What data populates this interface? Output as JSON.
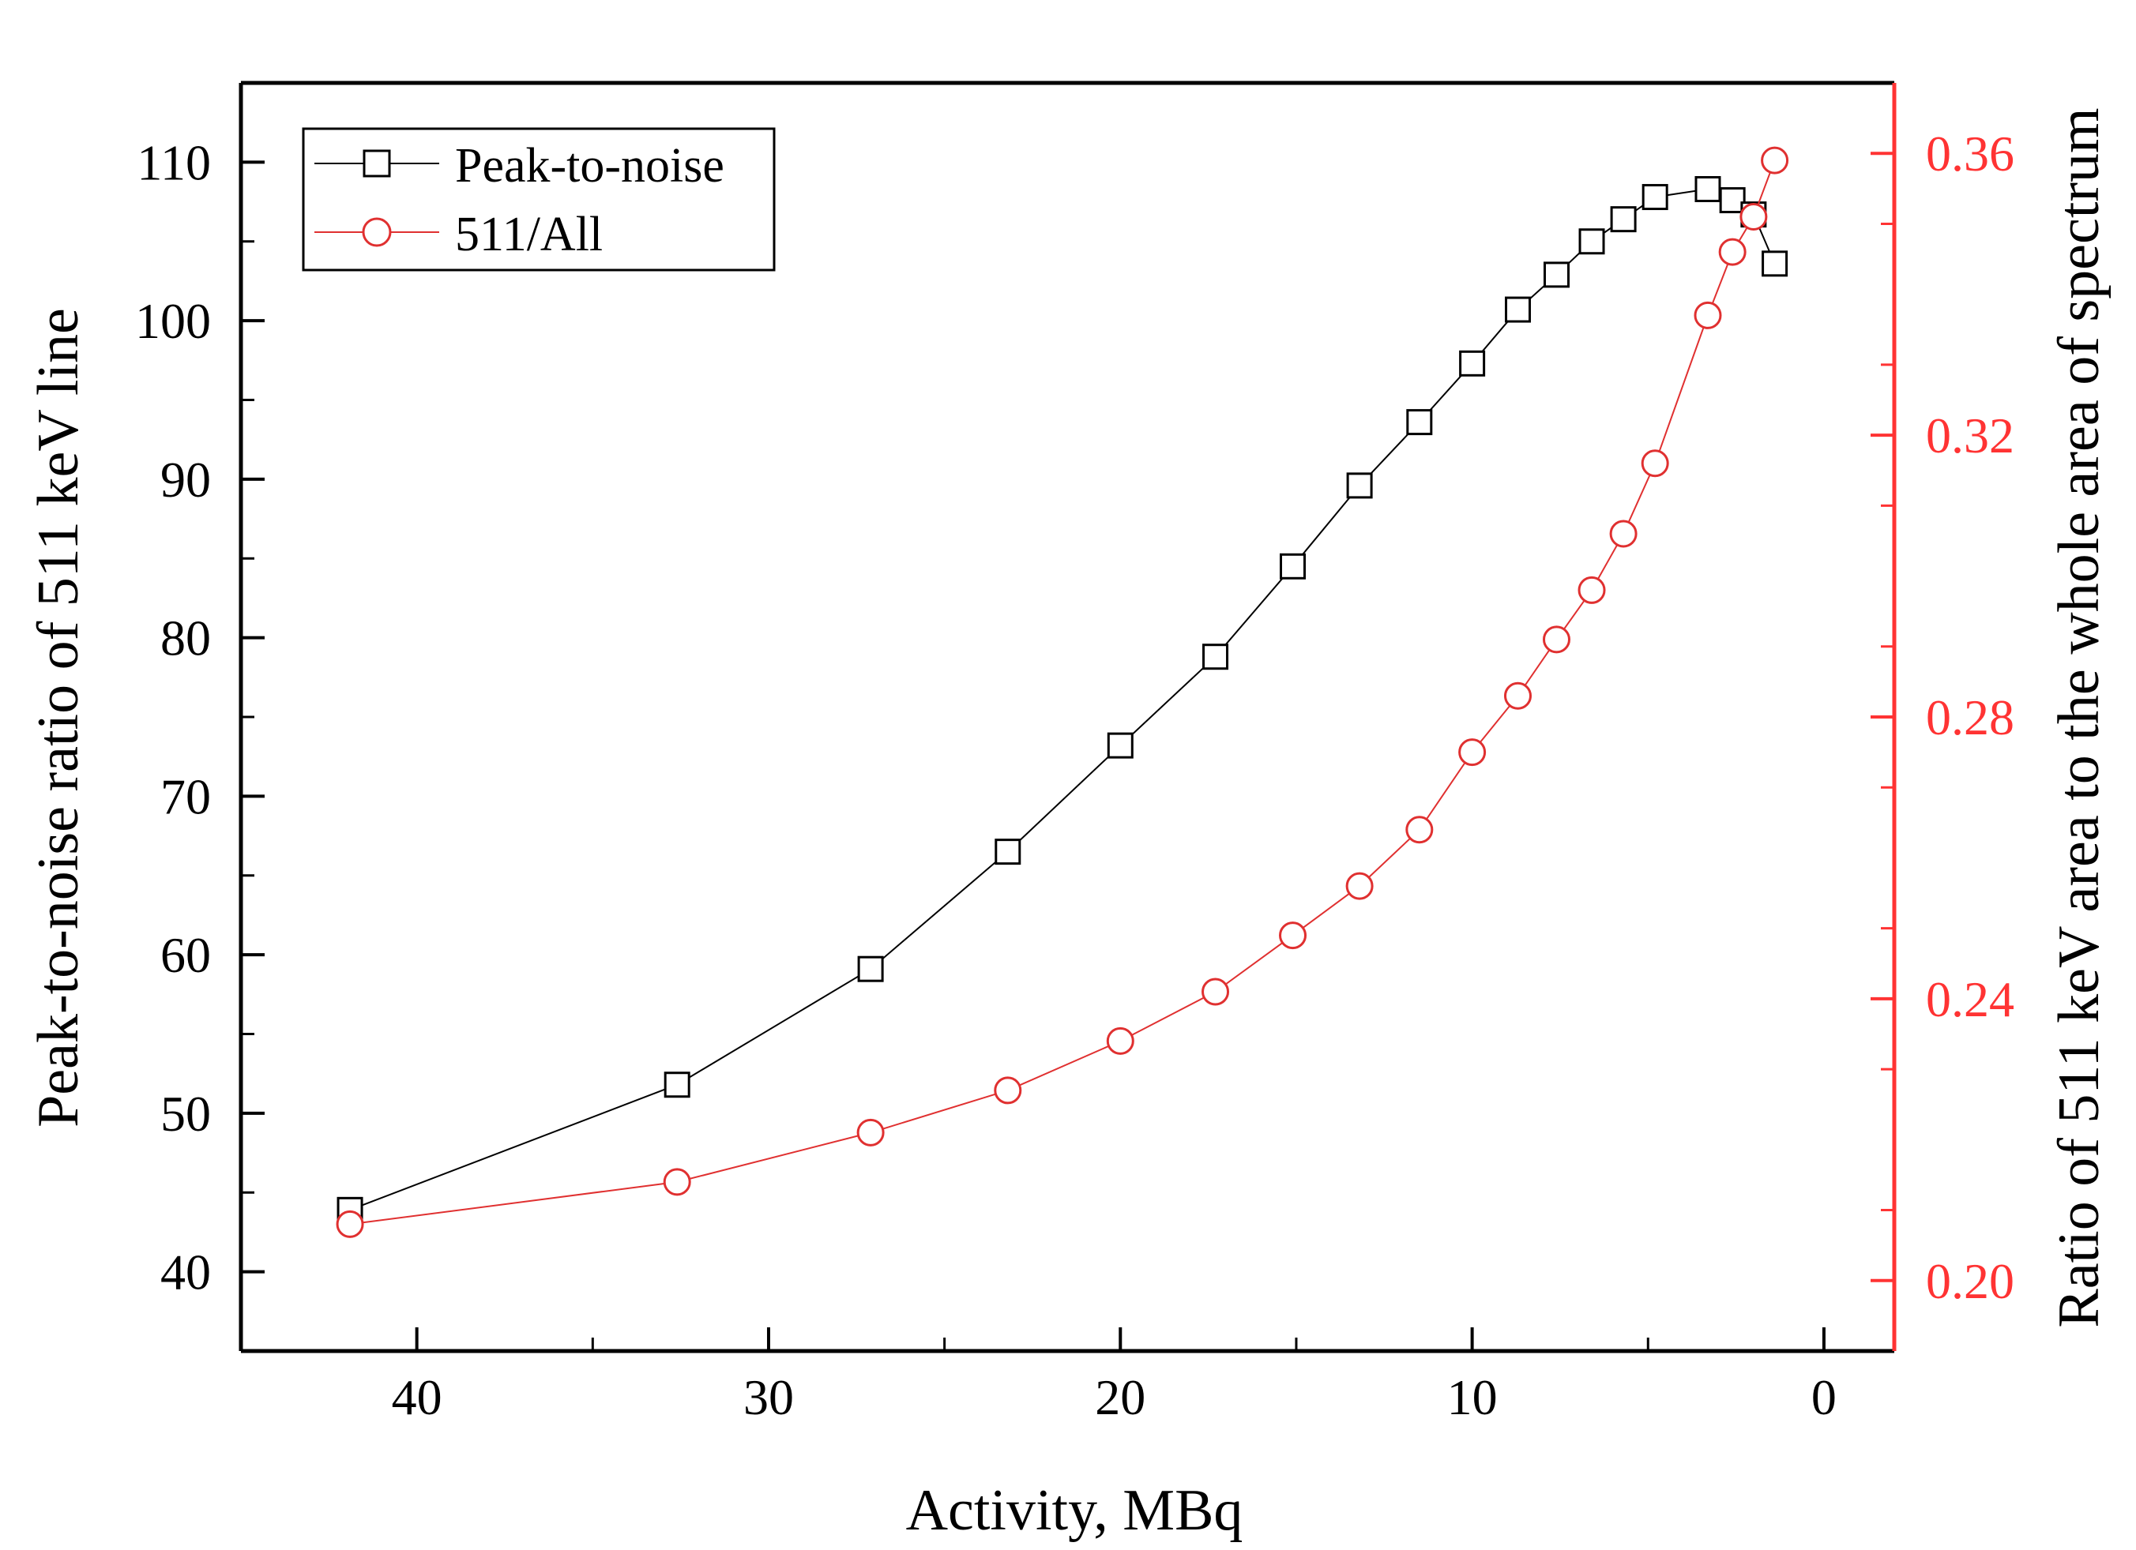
{
  "chart_data": {
    "type": "line",
    "title": "",
    "xlabel": "Activity, MBq",
    "ylabel": "Peak-to-noise ratio of 511 keV line",
    "y2label": "Ratio of 511 keV area to the whole area of spectrum",
    "xlim": [
      45,
      -2
    ],
    "ylim": [
      35,
      115
    ],
    "y2lim": [
      0.19,
      0.37
    ],
    "x_ticks": [
      40,
      30,
      20,
      10,
      0
    ],
    "x_tick_labels": [
      "40",
      "30",
      "20",
      "10",
      "0"
    ],
    "y_ticks": [
      40,
      50,
      60,
      70,
      80,
      90,
      100,
      110
    ],
    "y_tick_labels": [
      "40",
      "50",
      "60",
      "70",
      "80",
      "90",
      "100",
      "110"
    ],
    "y2_ticks": [
      0.2,
      0.24,
      0.28,
      0.32,
      0.36
    ],
    "y2_tick_labels": [
      "0.20",
      "0.24",
      "0.28",
      "0.32",
      "0.36"
    ],
    "legend_position": "top-left",
    "grid": false,
    "series": [
      {
        "name": "Peak-to-noise",
        "axis": "left",
        "marker": "square",
        "color": "#000000",
        "x": [
          41.9,
          32.6,
          27.1,
          23.2,
          20.0,
          17.3,
          15.1,
          13.2,
          11.5,
          10.0,
          8.7,
          7.6,
          6.6,
          5.7,
          4.8,
          3.3,
          2.6,
          2.0,
          1.4
        ],
        "y": [
          43.9,
          51.8,
          59.1,
          66.5,
          73.2,
          78.8,
          84.5,
          89.6,
          93.6,
          97.3,
          100.7,
          102.9,
          105.0,
          106.4,
          107.8,
          108.3,
          107.6,
          106.7,
          103.6
        ]
      },
      {
        "name": "511/All",
        "axis": "right",
        "marker": "circle",
        "color": "#e03030",
        "x": [
          41.9,
          32.6,
          27.1,
          23.2,
          20.0,
          17.3,
          15.1,
          13.2,
          11.5,
          10.0,
          8.7,
          7.6,
          6.6,
          5.7,
          4.8,
          3.3,
          2.6,
          2.0,
          1.4
        ],
        "y": [
          0.208,
          0.214,
          0.221,
          0.227,
          0.234,
          0.241,
          0.249,
          0.256,
          0.264,
          0.275,
          0.283,
          0.291,
          0.298,
          0.306,
          0.316,
          0.337,
          0.346,
          0.351,
          0.359
        ]
      }
    ]
  },
  "colors": {
    "frame": "#000000",
    "series1": "#000000",
    "series2": "#e03030",
    "right_axis": "#ff3333"
  }
}
